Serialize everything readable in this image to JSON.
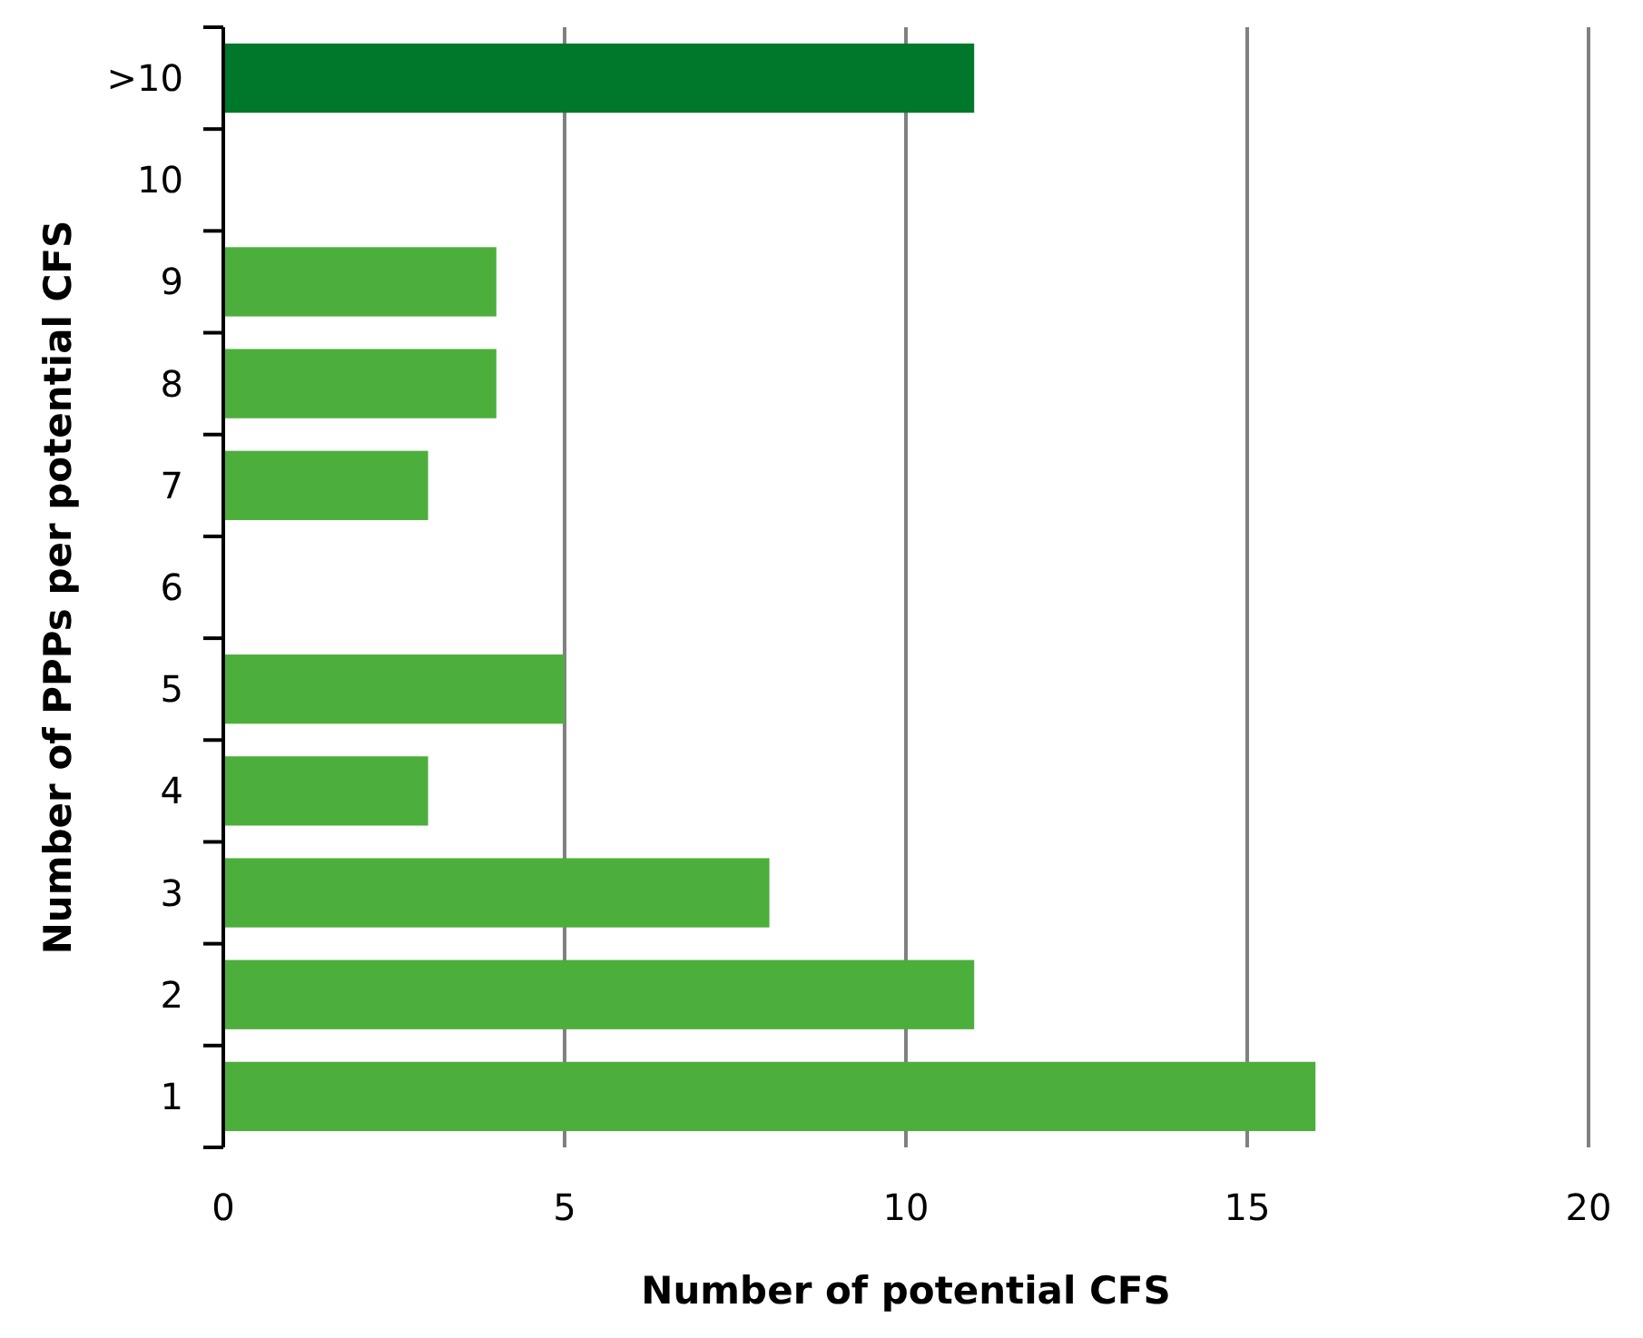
{
  "chart_data": {
    "type": "bar",
    "orientation": "horizontal",
    "xlabel": "Number of potential CFS",
    "ylabel": "Number of PPPs per potential CFS",
    "categories": [
      ">10",
      "10",
      "9",
      "8",
      "7",
      "6",
      "5",
      "4",
      "3",
      "2",
      "1"
    ],
    "values": [
      11,
      0,
      4,
      4,
      3,
      0,
      5,
      3,
      8,
      11,
      16
    ],
    "colors": [
      "#00782b",
      "#4caf3c",
      "#4caf3c",
      "#4caf3c",
      "#4caf3c",
      "#4caf3c",
      "#4caf3c",
      "#4caf3c",
      "#4caf3c",
      "#4caf3c",
      "#4caf3c"
    ],
    "xlim": [
      0,
      20
    ],
    "xticks": [
      0,
      5,
      10,
      15,
      20
    ],
    "grid": "x"
  }
}
